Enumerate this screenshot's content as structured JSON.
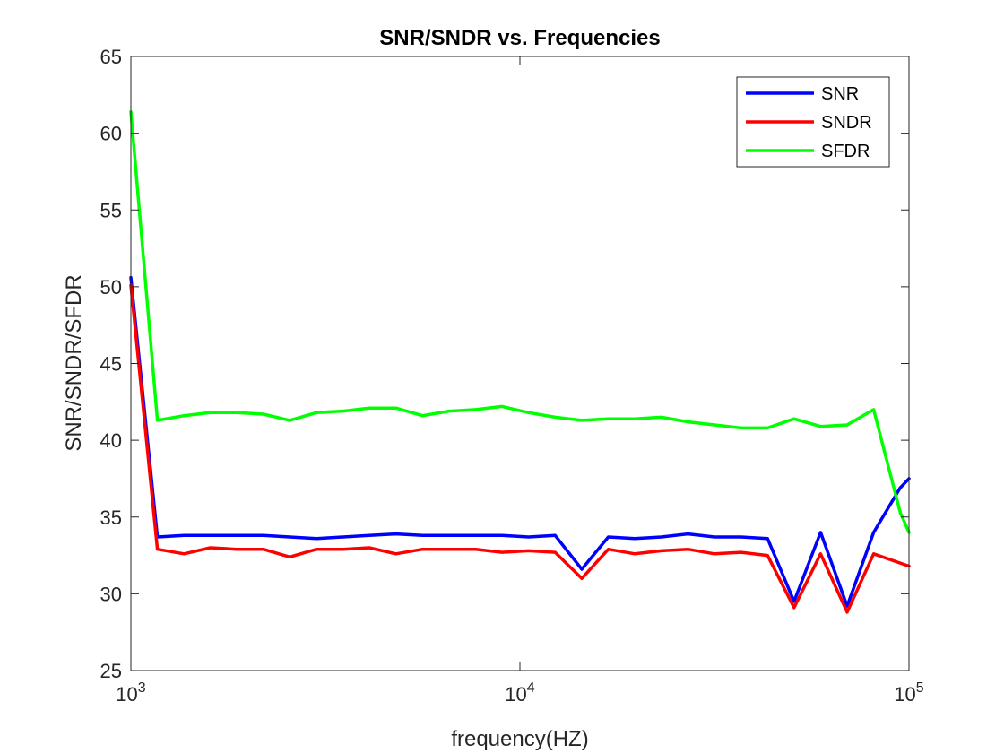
{
  "chart_data": {
    "type": "line",
    "title": "SNR/SNDR vs. Frequencies",
    "xlabel": "frequency(HZ)",
    "ylabel": "SNR/SNDR/SFDR",
    "xscale": "log",
    "xlim": [
      1000,
      100000
    ],
    "ylim": [
      25,
      65
    ],
    "xticks": [
      1000,
      10000,
      100000
    ],
    "xtick_labels": [
      {
        "base": "10",
        "exp": "3"
      },
      {
        "base": "10",
        "exp": "4"
      },
      {
        "base": "10",
        "exp": "5"
      }
    ],
    "yticks": [
      25,
      30,
      35,
      40,
      45,
      50,
      55,
      60,
      65
    ],
    "ytick_labels": [
      "25",
      "30",
      "35",
      "40",
      "45",
      "50",
      "55",
      "60",
      "65"
    ],
    "grid": false,
    "legend_position": "top-right",
    "x": [
      1000,
      1170,
      1370,
      1600,
      1870,
      2190,
      2560,
      3000,
      3510,
      4100,
      4800,
      5620,
      6580,
      7700,
      9000,
      10530,
      12320,
      14420,
      16870,
      19740,
      23100,
      27030,
      31620,
      37000,
      43290,
      50650,
      59260,
      69340,
      81130,
      94930,
      100000
    ],
    "series": [
      {
        "name": "SNR",
        "color": "#0000ff",
        "values": [
          50.6,
          33.7,
          33.8,
          33.8,
          33.8,
          33.8,
          33.7,
          33.6,
          33.7,
          33.8,
          33.9,
          33.8,
          33.8,
          33.8,
          33.8,
          33.7,
          33.8,
          31.6,
          33.7,
          33.6,
          33.7,
          33.9,
          33.7,
          33.7,
          33.6,
          29.5,
          34.0,
          29.2,
          34.0,
          36.9,
          37.5
        ]
      },
      {
        "name": "SNDR",
        "color": "#ff0000",
        "values": [
          50.1,
          32.9,
          32.6,
          33.0,
          32.9,
          32.9,
          32.4,
          32.9,
          32.9,
          33.0,
          32.6,
          32.9,
          32.9,
          32.9,
          32.7,
          32.8,
          32.7,
          31.0,
          32.9,
          32.6,
          32.8,
          32.9,
          32.6,
          32.7,
          32.5,
          29.1,
          32.6,
          28.8,
          32.6,
          32.0,
          31.8
        ]
      },
      {
        "name": "SFDR",
        "color": "#00ff00",
        "values": [
          61.4,
          41.3,
          41.6,
          41.8,
          41.8,
          41.7,
          41.3,
          41.8,
          41.9,
          42.1,
          42.1,
          41.6,
          41.9,
          42.0,
          42.2,
          41.8,
          41.5,
          41.3,
          41.4,
          41.4,
          41.5,
          41.2,
          41.0,
          40.8,
          40.8,
          41.4,
          40.9,
          41.0,
          42.0,
          35.3,
          34.0
        ]
      }
    ]
  }
}
